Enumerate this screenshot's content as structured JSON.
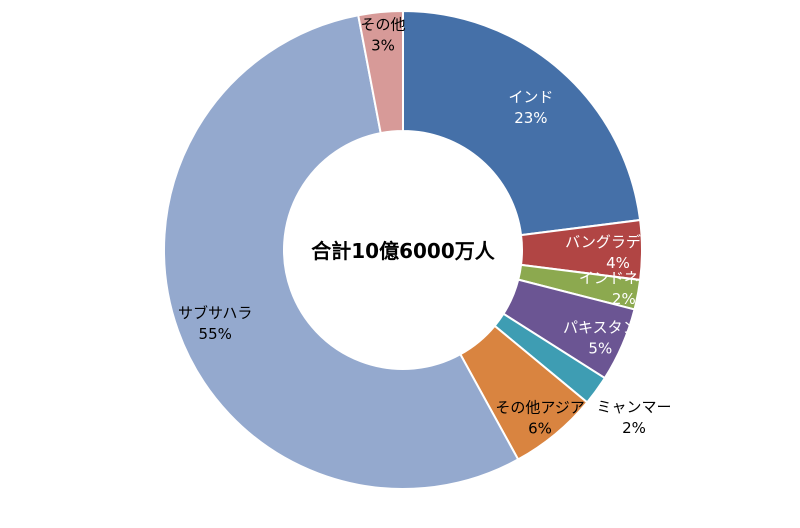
{
  "chart_data": {
    "type": "donut",
    "center_label": "合計10億6000万人",
    "slices": [
      {
        "name": "インド",
        "value": 23,
        "label": "23%",
        "color": "#4570A8",
        "text_color": "#ffffff"
      },
      {
        "name": "バングラデシュ",
        "value": 4,
        "label": "4%",
        "color": "#B14544",
        "text_color": "#ffffff"
      },
      {
        "name": "インドネシア",
        "value": 2,
        "label": "2%",
        "color": "#8CA94F",
        "text_color": "#ffffff"
      },
      {
        "name": "パキスタン",
        "value": 5,
        "label": "5%",
        "color": "#6B5593",
        "text_color": "#ffffff"
      },
      {
        "name": "ミャンマー",
        "value": 2,
        "label": "2%",
        "color": "#3E9DB3",
        "text_color": "#000000"
      },
      {
        "name": "その他アジア",
        "value": 6,
        "label": "6%",
        "color": "#D98440",
        "text_color": "#000000"
      },
      {
        "name": "サブサハラ",
        "value": 55,
        "label": "55%",
        "color": "#94A9CE",
        "text_color": "#000000"
      },
      {
        "name": "その他",
        "value": 3,
        "label": "3%",
        "color": "#D79A98",
        "text_color": "#000000"
      }
    ]
  }
}
